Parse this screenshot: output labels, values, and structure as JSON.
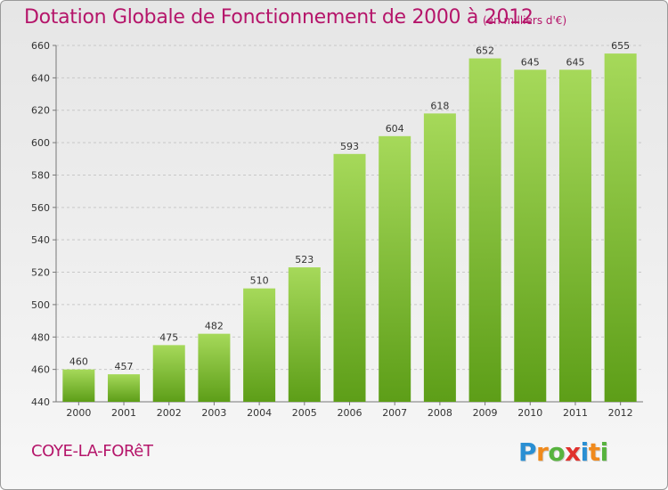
{
  "header": {
    "title": "Dotation Globale de Fonctionnement de 2000 à 2012",
    "unit": "(en milliers d'€)"
  },
  "footer": {
    "commune": "COYE-LA-FORêT",
    "logo_letters": [
      "P",
      "r",
      "o",
      "x",
      "i",
      "t",
      "i"
    ],
    "logo_colors": [
      "#2a8fd3",
      "#f08a1c",
      "#57b33e",
      "#e0312d",
      "#2a8fd3",
      "#f08a1c",
      "#57b33e"
    ]
  },
  "colors": {
    "text_accent": "#b5156a",
    "bar_top": "#a6d95a",
    "bar_bottom": "#5d9e18",
    "grid": "#c8c8c8"
  },
  "chart_data": {
    "type": "bar",
    "title": "Dotation Globale de Fonctionnement de 2000 à 2012",
    "subtitle": "(en milliers d'€)",
    "categories": [
      "2000",
      "2001",
      "2002",
      "2003",
      "2004",
      "2005",
      "2006",
      "2007",
      "2008",
      "2009",
      "2010",
      "2011",
      "2012"
    ],
    "values": [
      460,
      457,
      475,
      482,
      510,
      523,
      593,
      604,
      618,
      652,
      645,
      645,
      655
    ],
    "ylim": [
      440,
      660
    ],
    "yticks": [
      440,
      460,
      480,
      500,
      520,
      540,
      560,
      580,
      600,
      620,
      640,
      660
    ],
    "grid": true,
    "data_labels": true
  }
}
